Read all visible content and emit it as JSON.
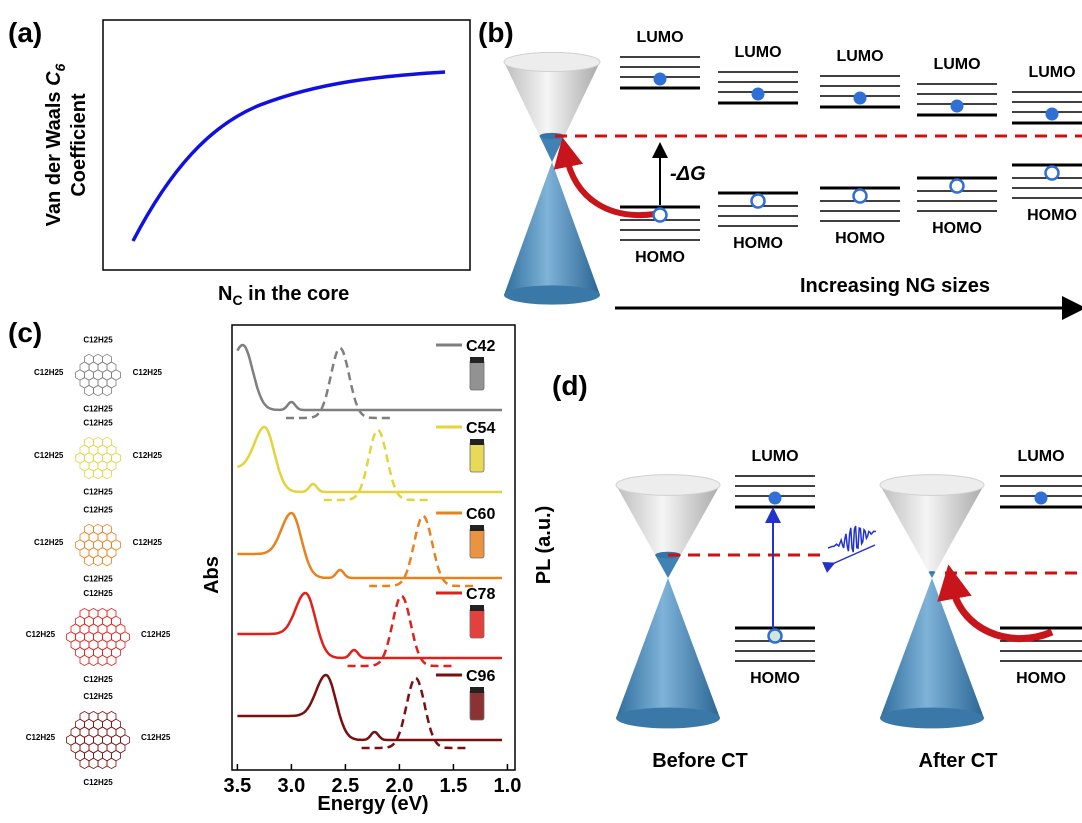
{
  "panel_a": {
    "label": "(a)",
    "y_label": {
      "line1": "Van der Waals ",
      "symbol": "C",
      "sub": "6",
      "line2": "Coefficient"
    },
    "x_label": {
      "main": "N",
      "sub": "C",
      "rest": " in the core"
    }
  },
  "panel_b": {
    "label": "(b)",
    "lumo": "LUMO",
    "homo": "HOMO",
    "delta_g": "-ΔG",
    "arrow_label": "Increasing NG sizes"
  },
  "panel_c": {
    "label": "(c)",
    "substituent": "C12H25",
    "y_label": "Abs",
    "y2_label": "PL (a.u.)",
    "x_label": "Energy (eV)",
    "xlim": [
      3.55,
      0.93
    ],
    "xticks": [
      3.5,
      {
        "value": 3,
        "label": "3.0"
      },
      2.5,
      {
        "value": 2,
        "label": "2.0"
      },
      1.5,
      {
        "value": 1,
        "label": "1.0"
      }
    ],
    "series": [
      {
        "name": "C42",
        "color": "#7f7f7f",
        "abs_peak": 3.45,
        "pl_peak": 2.55
      },
      {
        "name": "C54",
        "color": "#e3d43c",
        "abs_peak": 3.25,
        "pl_peak": 2.2
      },
      {
        "name": "C60",
        "color": "#e8821e",
        "abs_peak": 3.0,
        "pl_peak": 1.78
      },
      {
        "name": "C78",
        "color": "#e0201b",
        "abs_peak": 2.87,
        "pl_peak": 1.98
      },
      {
        "name": "C96",
        "color": "#7a0f0f",
        "abs_peak": 2.68,
        "pl_peak": 1.85
      }
    ]
  },
  "panel_d": {
    "label": "(d)",
    "lumo": "LUMO",
    "homo": "HOMO",
    "before": "Before CT",
    "after": "After CT"
  }
}
